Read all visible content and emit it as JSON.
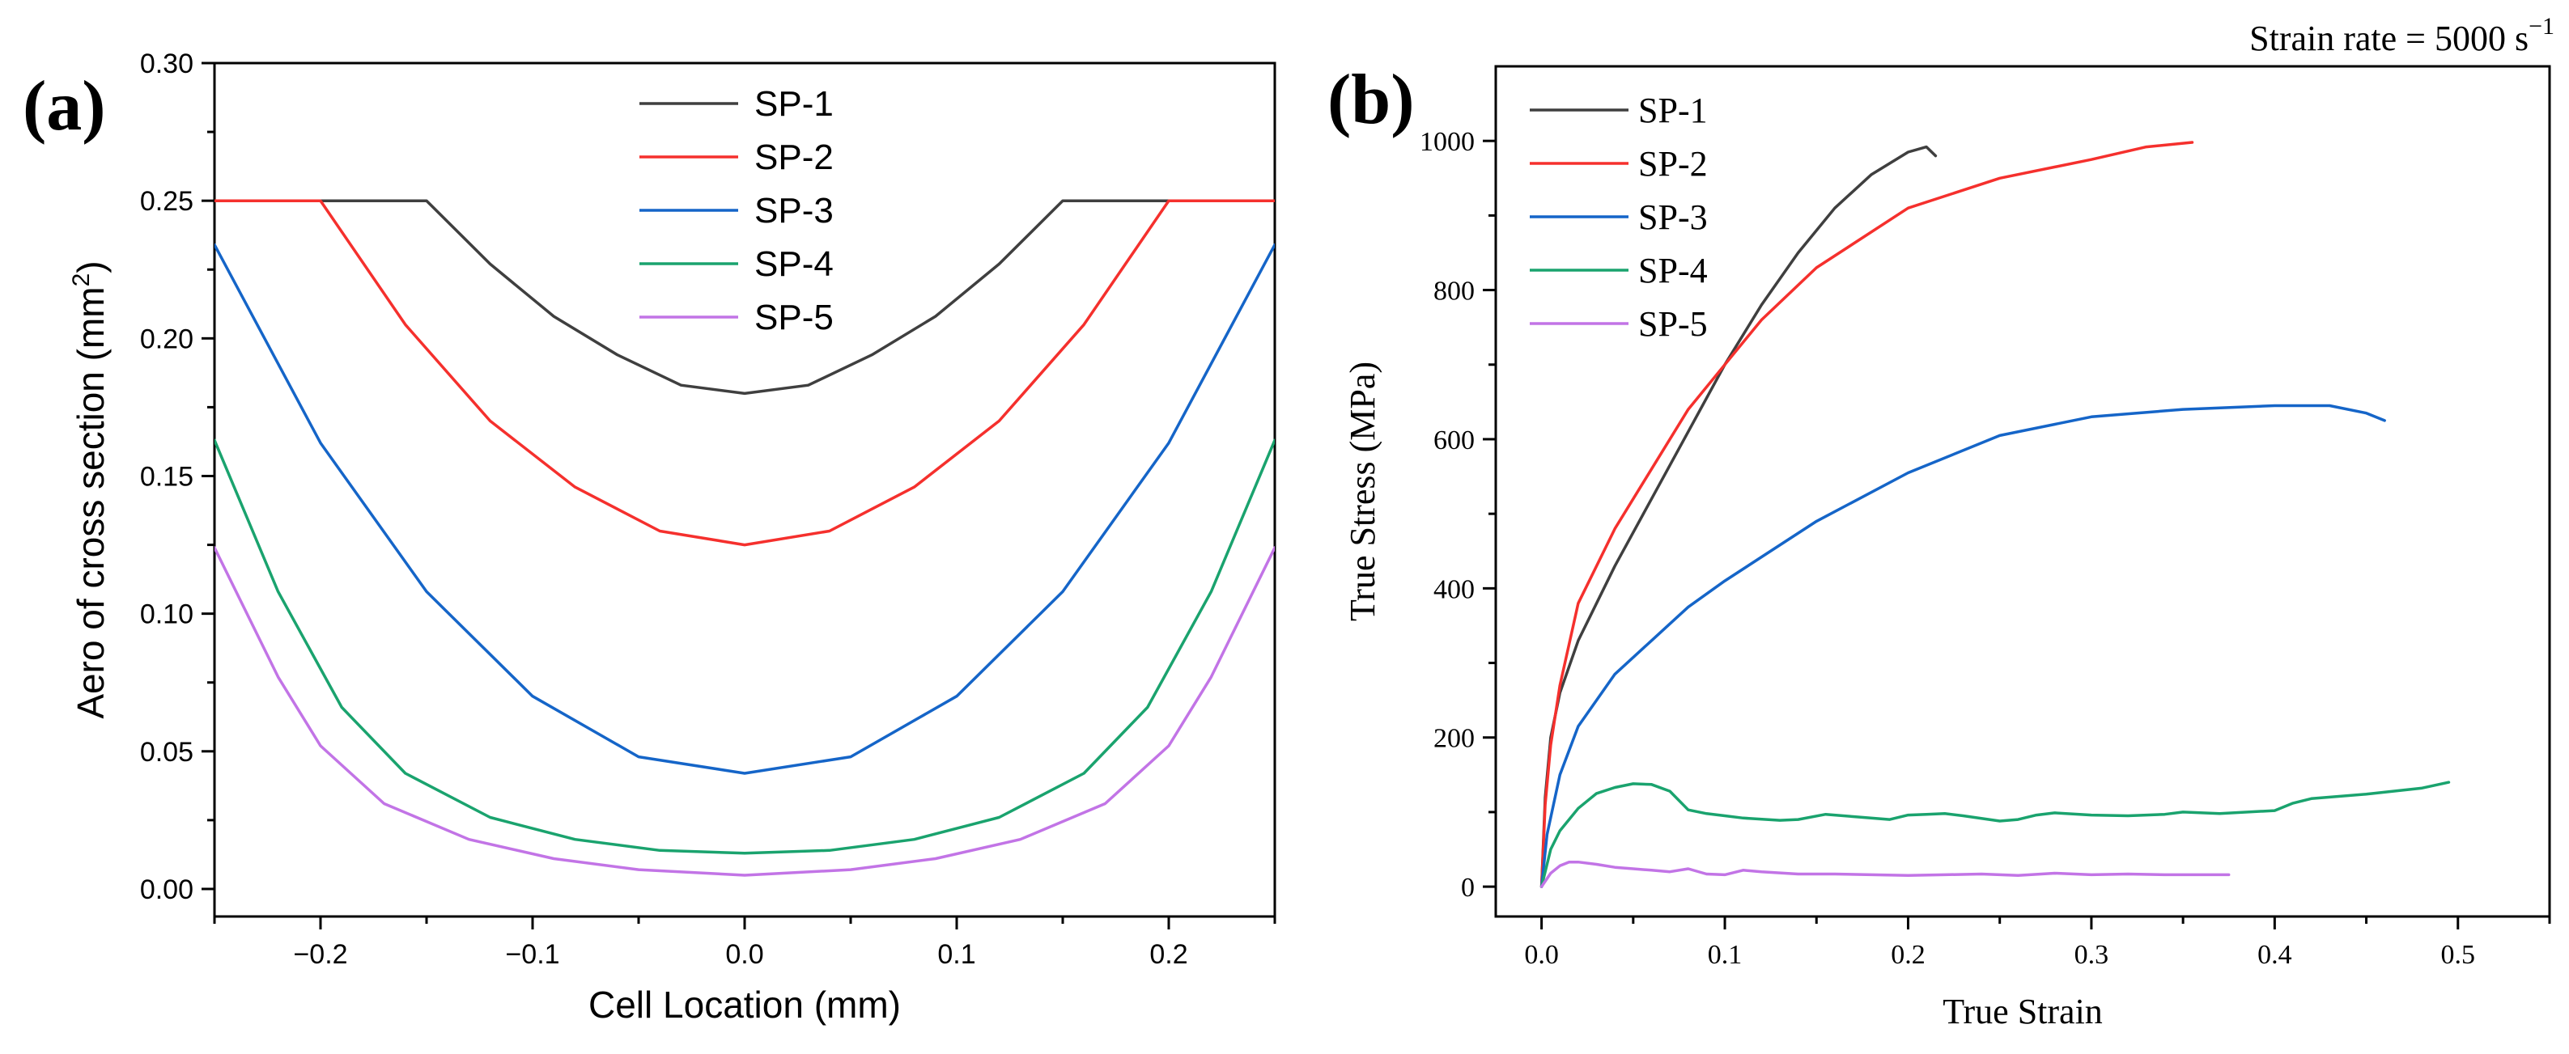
{
  "figure_note": "Strain rate = 5000 s",
  "figure_note_sup": "−1",
  "colors": {
    "SP-1": "#3f3f3f",
    "SP-2": "#f5302d",
    "SP-3": "#1565c8",
    "SP-4": "#1aa36e",
    "SP-5": "#c274e6",
    "axis": "#000000"
  },
  "chart_data": [
    {
      "panel_label": "(a)",
      "type": "line",
      "title": "",
      "xlabel": "Cell Location (mm)",
      "ylabel_main": "Aero of cross section (mm",
      "ylabel_sup": "2",
      "ylabel_end": ")",
      "xlim": [
        -0.25,
        0.25
      ],
      "ylim": [
        -0.01,
        0.3
      ],
      "xticks": [
        -0.2,
        -0.1,
        0.0,
        0.1,
        0.2
      ],
      "xtick_labels": [
        "−0.2",
        "−0.1",
        "0.0",
        "0.1",
        "0.2"
      ],
      "yticks": [
        0.0,
        0.05,
        0.1,
        0.15,
        0.2,
        0.25,
        0.3
      ],
      "ytick_labels": [
        "0.00",
        "0.05",
        "0.10",
        "0.15",
        "0.20",
        "0.25",
        "0.30"
      ],
      "legend": "top-center",
      "series": [
        {
          "name": "SP-1",
          "x": [
            -0.25,
            -0.15,
            -0.12,
            -0.09,
            -0.06,
            -0.03,
            0.0,
            0.03,
            0.06,
            0.09,
            0.12,
            0.15,
            0.25
          ],
          "y": [
            0.25,
            0.25,
            0.227,
            0.208,
            0.194,
            0.183,
            0.18,
            0.183,
            0.194,
            0.208,
            0.227,
            0.25,
            0.25
          ]
        },
        {
          "name": "SP-2",
          "x": [
            -0.25,
            -0.2,
            -0.16,
            -0.12,
            -0.08,
            -0.04,
            0.0,
            0.04,
            0.08,
            0.12,
            0.16,
            0.2,
            0.25
          ],
          "y": [
            0.25,
            0.25,
            0.205,
            0.17,
            0.146,
            0.13,
            0.125,
            0.13,
            0.146,
            0.17,
            0.205,
            0.25,
            0.25
          ]
        },
        {
          "name": "SP-3",
          "x": [
            -0.25,
            -0.2,
            -0.15,
            -0.1,
            -0.05,
            0.0,
            0.05,
            0.1,
            0.15,
            0.2,
            0.25
          ],
          "y": [
            0.234,
            0.162,
            0.108,
            0.07,
            0.048,
            0.042,
            0.048,
            0.07,
            0.108,
            0.162,
            0.234
          ]
        },
        {
          "name": "SP-4",
          "x": [
            -0.25,
            -0.22,
            -0.19,
            -0.16,
            -0.12,
            -0.08,
            -0.04,
            0.0,
            0.04,
            0.08,
            0.12,
            0.16,
            0.19,
            0.22,
            0.25
          ],
          "y": [
            0.163,
            0.108,
            0.066,
            0.042,
            0.026,
            0.018,
            0.014,
            0.013,
            0.014,
            0.018,
            0.026,
            0.042,
            0.066,
            0.108,
            0.163
          ]
        },
        {
          "name": "SP-5",
          "x": [
            -0.25,
            -0.22,
            -0.2,
            -0.17,
            -0.13,
            -0.09,
            -0.05,
            0.0,
            0.05,
            0.09,
            0.13,
            0.17,
            0.2,
            0.22,
            0.25
          ],
          "y": [
            0.124,
            0.077,
            0.052,
            0.031,
            0.018,
            0.011,
            0.007,
            0.005,
            0.007,
            0.011,
            0.018,
            0.031,
            0.052,
            0.077,
            0.124
          ]
        }
      ]
    },
    {
      "panel_label": "(b)",
      "type": "line",
      "title": "",
      "xlabel": "True Strain",
      "ylabel_main": "True Stress (MPa)",
      "ylabel_sup": "",
      "ylabel_end": "",
      "xlim": [
        -0.025,
        0.55
      ],
      "ylim": [
        -40,
        1100
      ],
      "xticks": [
        0.0,
        0.1,
        0.2,
        0.3,
        0.4,
        0.5
      ],
      "xtick_labels": [
        "0.0",
        "0.1",
        "0.2",
        "0.3",
        "0.4",
        "0.5"
      ],
      "yticks": [
        0,
        200,
        400,
        600,
        800,
        1000
      ],
      "ytick_labels": [
        "0",
        "200",
        "400",
        "600",
        "800",
        "1000"
      ],
      "legend": "top-left",
      "series": [
        {
          "name": "SP-1",
          "x": [
            0,
            0.002,
            0.005,
            0.01,
            0.02,
            0.04,
            0.06,
            0.08,
            0.1,
            0.12,
            0.14,
            0.16,
            0.18,
            0.2,
            0.21,
            0.215
          ],
          "y": [
            0,
            120,
            200,
            260,
            330,
            430,
            520,
            610,
            700,
            780,
            850,
            910,
            955,
            985,
            992,
            980
          ]
        },
        {
          "name": "SP-2",
          "x": [
            0,
            0.002,
            0.005,
            0.01,
            0.02,
            0.04,
            0.06,
            0.08,
            0.1,
            0.12,
            0.15,
            0.2,
            0.25,
            0.3,
            0.33,
            0.355
          ],
          "y": [
            0,
            110,
            190,
            270,
            380,
            480,
            560,
            640,
            700,
            760,
            830,
            910,
            950,
            975,
            992,
            998
          ]
        },
        {
          "name": "SP-3",
          "x": [
            0,
            0.003,
            0.01,
            0.02,
            0.04,
            0.06,
            0.08,
            0.1,
            0.15,
            0.2,
            0.25,
            0.3,
            0.35,
            0.4,
            0.43,
            0.45,
            0.46
          ],
          "y": [
            0,
            70,
            150,
            215,
            285,
            330,
            375,
            410,
            490,
            555,
            605,
            630,
            640,
            645,
            645,
            635,
            625
          ]
        },
        {
          "name": "SP-4",
          "x": [
            0,
            0.005,
            0.01,
            0.02,
            0.03,
            0.04,
            0.05,
            0.06,
            0.07,
            0.08,
            0.09,
            0.1,
            0.11,
            0.13,
            0.14,
            0.155,
            0.17,
            0.19,
            0.2,
            0.21,
            0.22,
            0.23,
            0.25,
            0.26,
            0.27,
            0.28,
            0.3,
            0.32,
            0.34,
            0.35,
            0.37,
            0.4,
            0.41,
            0.42,
            0.45,
            0.48,
            0.495
          ],
          "y": [
            0,
            50,
            75,
            105,
            125,
            133,
            138,
            137,
            128,
            103,
            98,
            95,
            92,
            89,
            90,
            97,
            94,
            90,
            96,
            97,
            98,
            95,
            88,
            90,
            96,
            99,
            96,
            95,
            97,
            100,
            98,
            102,
            112,
            118,
            124,
            132,
            140
          ]
        },
        {
          "name": "SP-5",
          "x": [
            0,
            0.005,
            0.01,
            0.015,
            0.02,
            0.03,
            0.04,
            0.05,
            0.06,
            0.07,
            0.08,
            0.09,
            0.1,
            0.11,
            0.12,
            0.14,
            0.16,
            0.18,
            0.2,
            0.22,
            0.24,
            0.26,
            0.28,
            0.3,
            0.32,
            0.34,
            0.36,
            0.375
          ],
          "y": [
            0,
            18,
            28,
            33,
            33,
            30,
            26,
            24,
            22,
            20,
            24,
            17,
            16,
            22,
            20,
            17,
            17,
            16,
            15,
            16,
            17,
            15,
            18,
            16,
            17,
            16,
            16,
            16
          ]
        }
      ]
    }
  ]
}
